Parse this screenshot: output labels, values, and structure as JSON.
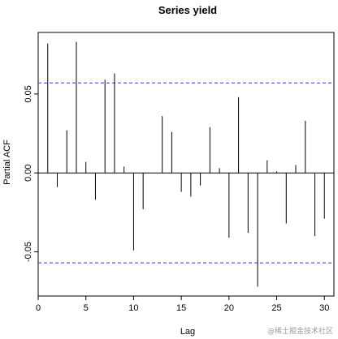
{
  "chart_data": {
    "type": "bar",
    "title": "Series  yield",
    "xlabel": "Lag",
    "ylabel": "Partial ACF",
    "xlim": [
      0,
      31
    ],
    "ylim": [
      -0.078,
      0.089
    ],
    "xticks": [
      0,
      5,
      10,
      15,
      20,
      25,
      30
    ],
    "yticks": [
      -0.05,
      0.0,
      0.05
    ],
    "ytick_labels": [
      "-0.05",
      "0.00",
      "0.05"
    ],
    "lags": [
      1,
      2,
      3,
      4,
      5,
      6,
      7,
      8,
      9,
      10,
      11,
      12,
      13,
      14,
      15,
      16,
      17,
      18,
      19,
      20,
      21,
      22,
      23,
      24,
      25,
      26,
      27,
      28,
      29,
      30
    ],
    "values": [
      0.082,
      -0.009,
      0.027,
      0.083,
      0.007,
      -0.017,
      0.059,
      0.063,
      0.004,
      -0.049,
      -0.023,
      0.0,
      0.036,
      0.026,
      -0.012,
      -0.015,
      -0.008,
      0.029,
      0.003,
      -0.041,
      0.048,
      -0.038,
      -0.072,
      0.008,
      0.001,
      -0.032,
      0.005,
      0.033,
      -0.04,
      -0.029
    ],
    "confidence_bound": 0.057,
    "confidence_color": "#3333cc",
    "bar_color": "#000000",
    "grid": false
  },
  "watermark": "@稀土掘金技术社区"
}
